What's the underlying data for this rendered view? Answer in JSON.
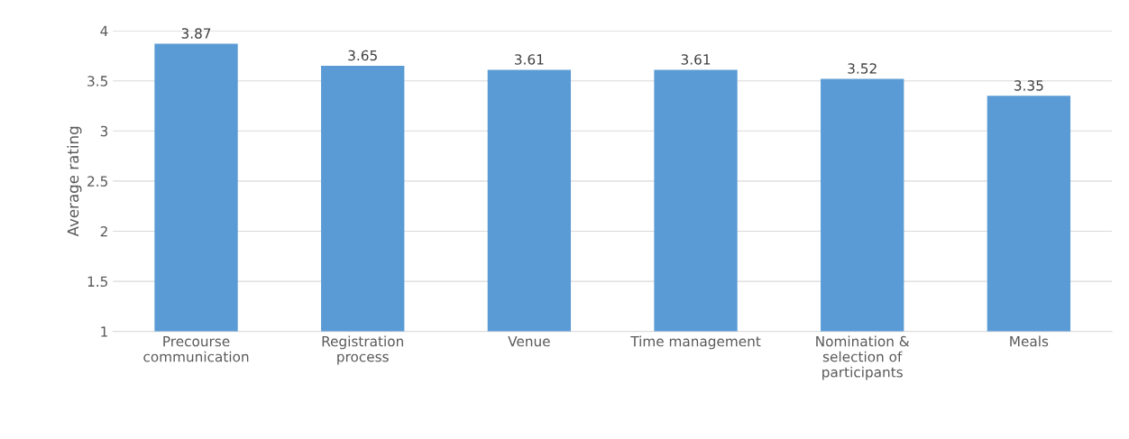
{
  "chart_data": {
    "type": "bar",
    "ylabel": "Average rating",
    "categories": [
      "Precourse\ncommunication",
      "Registration\nprocess",
      "Venue",
      "Time management",
      "Nomination &\nselection of\nparticipants",
      "Meals"
    ],
    "values": [
      3.87,
      3.65,
      3.61,
      3.61,
      3.52,
      3.35
    ],
    "color": "#5b9bd5",
    "ylim": [
      1,
      4
    ],
    "yticks": [
      1,
      1.5,
      2,
      2.5,
      3,
      3.5,
      4
    ],
    "grid": "y",
    "data_labels": true
  }
}
